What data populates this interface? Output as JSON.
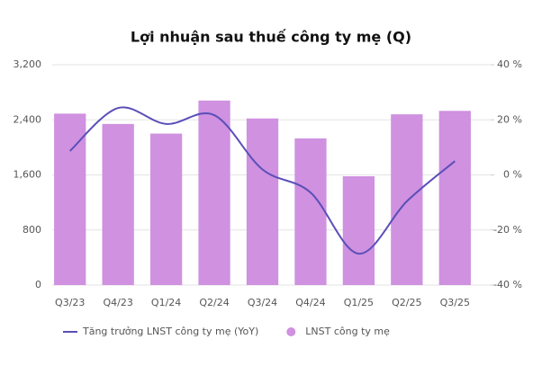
{
  "chart_data": {
    "type": "combo",
    "title": "Lợi nhuận sau thuế công ty mẹ (Q)",
    "categories": [
      "Q3/23",
      "Q4/23",
      "Q1/24",
      "Q2/24",
      "Q3/24",
      "Q4/24",
      "Q1/25",
      "Q2/25",
      "Q3/25"
    ],
    "series": [
      {
        "name": "Tăng trưởng LNST công ty mẹ (YoY)",
        "type": "line",
        "axis": "y2",
        "color": "#5b4fb8",
        "values": [
          8.7,
          24.3,
          18.5,
          21.7,
          2,
          -6.4,
          -28.6,
          -9.6,
          5
        ]
      },
      {
        "name": "LNST công ty mẹ",
        "type": "bar",
        "axis": "y",
        "color": "#cf91e0",
        "values": [
          2490,
          2340,
          2200,
          2680,
          2420,
          2130,
          1580,
          2480,
          2530
        ]
      }
    ],
    "ylim": [
      0,
      3200
    ],
    "yticks": [
      0,
      800,
      {
        "value": 1600,
        "label": "1,600"
      },
      {
        "value": 2400,
        "label": "2,400"
      },
      {
        "value": 3200,
        "label": "3,200"
      }
    ],
    "y2lim": [
      -40,
      40
    ],
    "y2ticks": [
      {
        "value": -40,
        "label": "-40 %"
      },
      {
        "value": -20,
        "label": "-20 %"
      },
      {
        "value": 0,
        "label": "0 %"
      },
      {
        "value": 20,
        "label": "20 %"
      },
      {
        "value": 40,
        "label": "40 %"
      }
    ],
    "grid": true,
    "legend": "bottom"
  }
}
